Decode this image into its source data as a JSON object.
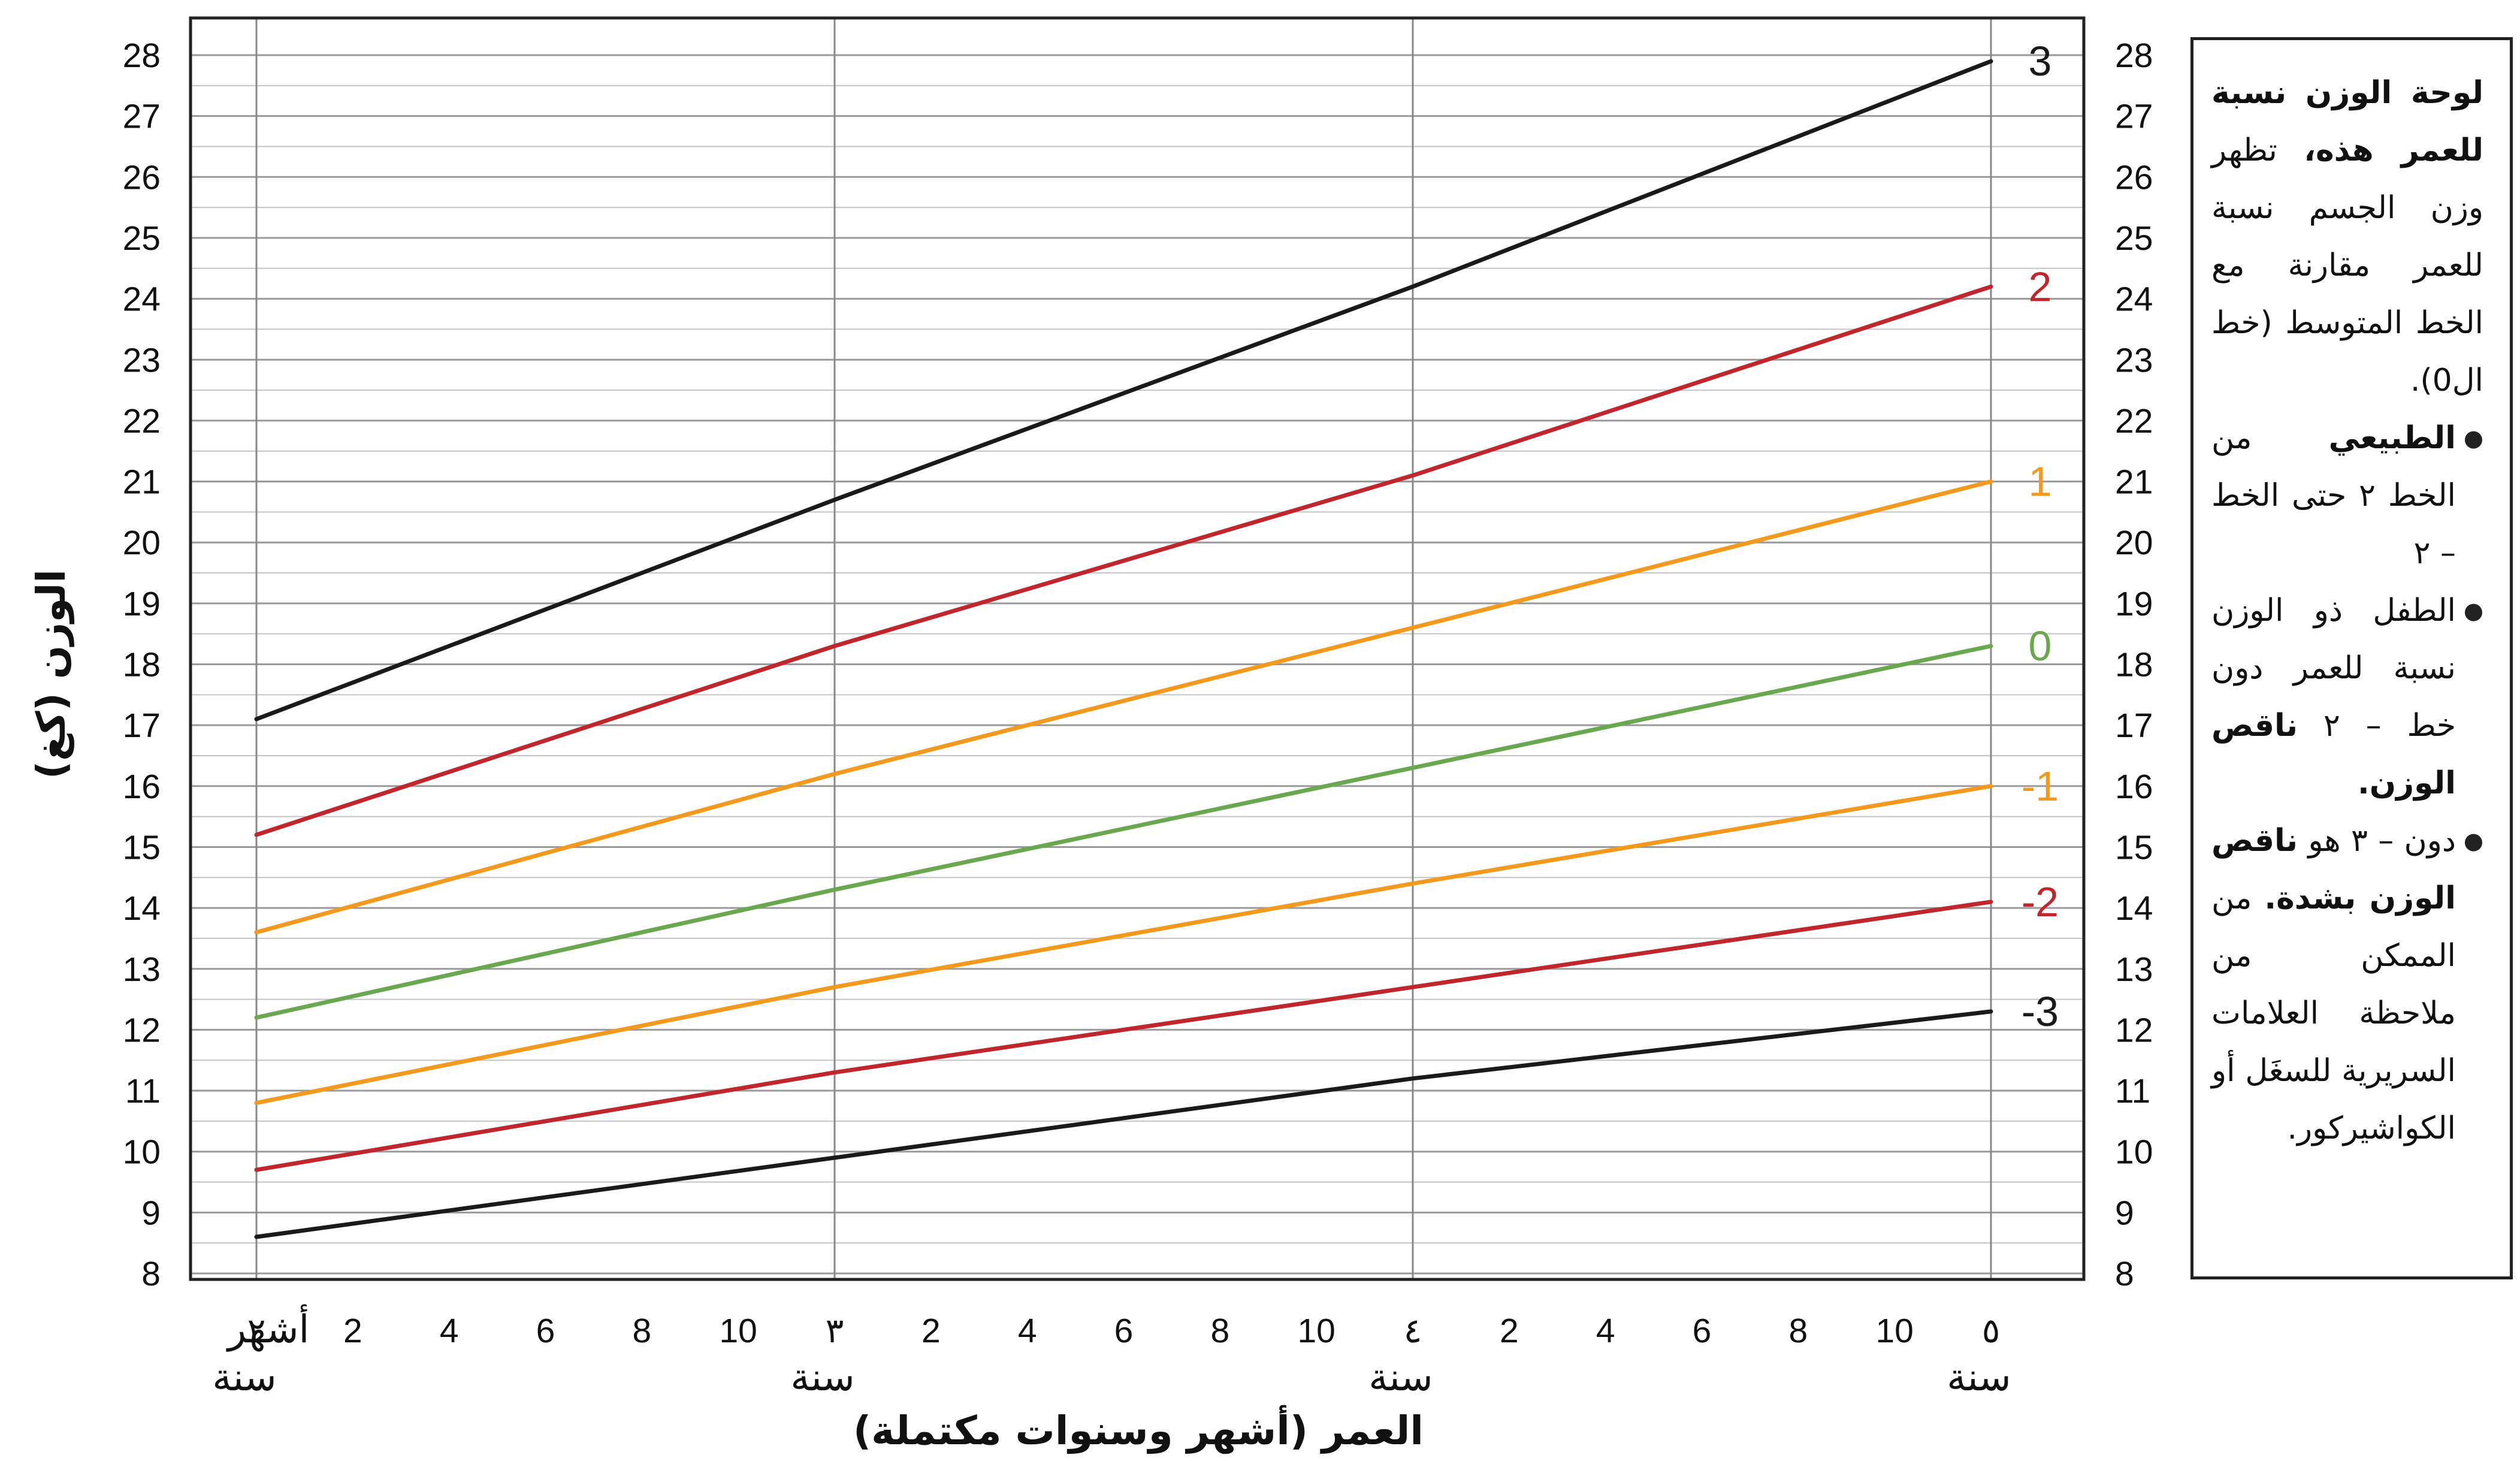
{
  "chart_data": {
    "type": "line",
    "xlabel": "العمر (أشهر وسنوات مكتملة)",
    "ylabel": "الوزن (كغ)",
    "ylim": [
      8,
      28
    ],
    "xlim": [
      24,
      60
    ],
    "y_ticks": [
      "8",
      "9",
      "10",
      "11",
      "12",
      "13",
      "14",
      "15",
      "16",
      "17",
      "18",
      "19",
      "20",
      "21",
      "22",
      "23",
      "24",
      "25",
      "26",
      "27",
      "28"
    ],
    "x_ticks": [
      {
        "months": 24,
        "label": "٢"
      },
      {
        "months": 26,
        "label": "2"
      },
      {
        "months": 28,
        "label": "4"
      },
      {
        "months": 30,
        "label": "6"
      },
      {
        "months": 32,
        "label": "8"
      },
      {
        "months": 34,
        "label": "10"
      },
      {
        "months": 36,
        "label": "٣"
      },
      {
        "months": 38,
        "label": "2"
      },
      {
        "months": 40,
        "label": "4"
      },
      {
        "months": 42,
        "label": "6"
      },
      {
        "months": 44,
        "label": "8"
      },
      {
        "months": 46,
        "label": "10"
      },
      {
        "months": 48,
        "label": "٤"
      },
      {
        "months": 50,
        "label": "2"
      },
      {
        "months": 52,
        "label": "4"
      },
      {
        "months": 54,
        "label": "6"
      },
      {
        "months": 56,
        "label": "8"
      },
      {
        "months": 58,
        "label": "10"
      },
      {
        "months": 60,
        "label": "٥"
      }
    ],
    "months_word": "أشهر",
    "year_word": "سنة",
    "year_label_months": [
      24,
      36,
      48,
      60
    ],
    "grid": true,
    "x": [
      24,
      36,
      48,
      60
    ],
    "series": [
      {
        "name": "3",
        "color": "#1a1a1a",
        "values": [
          17.1,
          20.7,
          24.2,
          27.9
        ]
      },
      {
        "name": "2",
        "color": "#c0272d",
        "values": [
          15.2,
          18.3,
          21.1,
          24.2
        ]
      },
      {
        "name": "1",
        "color": "#f39a1e",
        "values": [
          13.6,
          16.2,
          18.6,
          21.0
        ]
      },
      {
        "name": "0",
        "color": "#6aa84f",
        "values": [
          12.2,
          14.3,
          16.3,
          18.3
        ]
      },
      {
        "name": "-1",
        "color": "#f39a1e",
        "values": [
          10.8,
          12.7,
          14.4,
          16.0
        ]
      },
      {
        "name": "-2",
        "color": "#c0272d",
        "values": [
          9.7,
          11.3,
          12.7,
          14.1
        ]
      },
      {
        "name": "-3",
        "color": "#1a1a1a",
        "values": [
          8.6,
          9.9,
          11.2,
          12.3
        ]
      }
    ]
  },
  "info": {
    "intro_bold": "لوحة الوزن نسبة للعمر هذه،",
    "intro_text": "تظهر وزن الجسم نسبة للعمر مقارنة مع الخط المتوسط (خط ال0).",
    "bullet1_bold": "الطبيعي",
    "bullet1_text": "من الخط ٢ حتى الخط – ٢",
    "bullet2_text": "الطفل ذو الوزن نسبة للعمر دون خط – ٢",
    "bullet2_bold": "ناقص الوزن.",
    "bullet3_text": "دون – ٣ هو",
    "bullet3_bold": "ناقص الوزن بشدة.",
    "bullet3_rest": "من الممكن من ملاحظة العلامات السريرية للسغَل أو الكواشيركور."
  }
}
